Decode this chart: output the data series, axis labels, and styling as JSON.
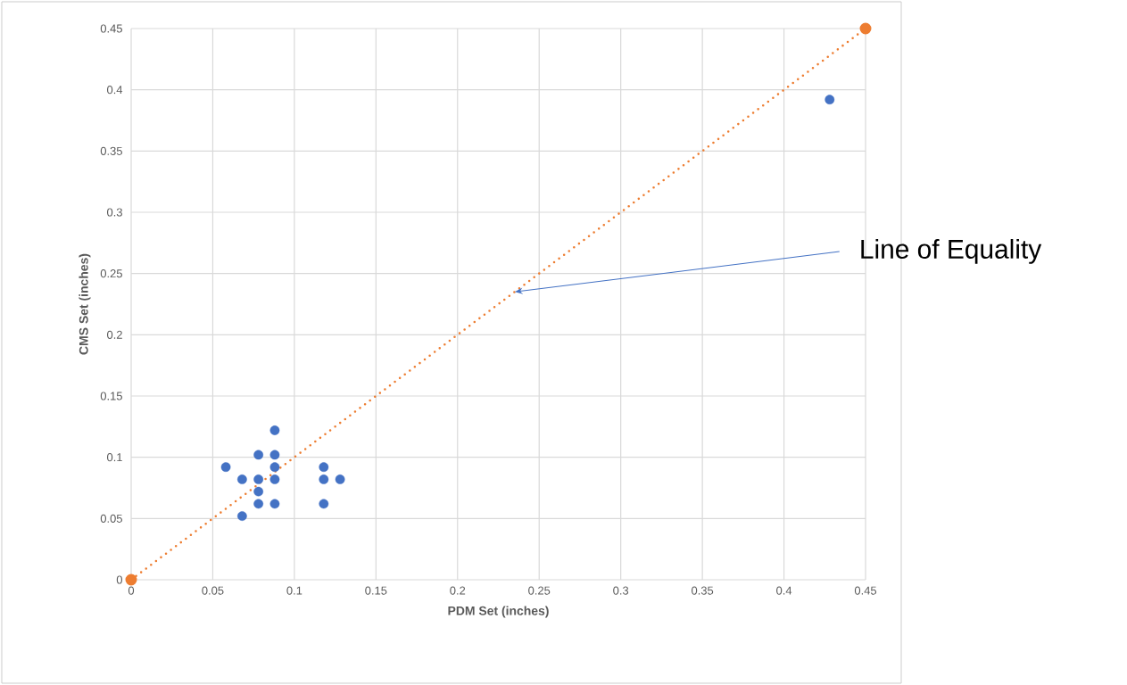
{
  "chart_data": {
    "type": "scatter",
    "xlabel": "PDM Set (inches)",
    "ylabel": "CMS Set (inches)",
    "xlim": [
      0,
      0.45
    ],
    "ylim": [
      0,
      0.45
    ],
    "xticks": [
      0,
      0.05,
      0.1,
      0.15,
      0.2,
      0.25,
      0.3,
      0.35,
      0.4,
      0.45
    ],
    "yticks": [
      0,
      0.05,
      0.1,
      0.15,
      0.2,
      0.25,
      0.3,
      0.35,
      0.4,
      0.45
    ],
    "grid": true,
    "series": [
      {
        "color": "#4472c4",
        "marker": "circle",
        "x": [
          0.058,
          0.068,
          0.068,
          0.078,
          0.078,
          0.078,
          0.078,
          0.088,
          0.088,
          0.088,
          0.088,
          0.088,
          0.118,
          0.118,
          0.118,
          0.128,
          0.428
        ],
        "values": [
          0.092,
          0.082,
          0.052,
          0.102,
          0.082,
          0.072,
          0.062,
          0.122,
          0.102,
          0.092,
          0.082,
          0.062,
          0.092,
          0.082,
          0.062,
          0.082,
          0.392
        ]
      },
      {
        "type": "line",
        "color": "#ed7d31",
        "marker": "circle",
        "line_style": "dotted",
        "x": [
          0,
          0.45
        ],
        "values": [
          0,
          0.45
        ]
      }
    ],
    "annotations": [
      {
        "text": "Line of Equality",
        "x": 0.235,
        "y": 0.235
      }
    ]
  }
}
